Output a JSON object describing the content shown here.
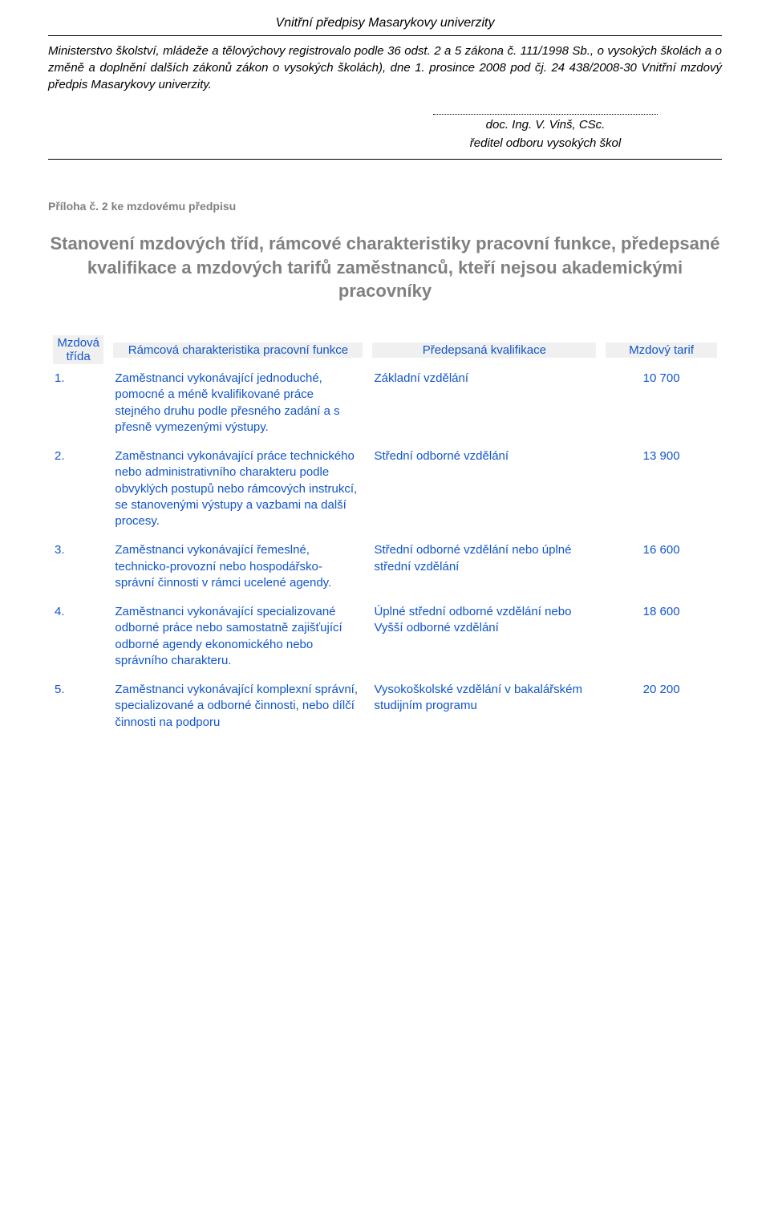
{
  "header": {
    "title": "Vnitřní předpisy Masarykovy univerzity",
    "intro": "Ministerstvo školství, mládeže a tělovýchovy registrovalo podle 36 odst. 2 a 5 zákona č. 111/1998 Sb., o vysokých školách a o změně a doplnění dalších zákonů zákon o vysokých školách), dne 1. prosince 2008 pod čj. 24 438/2008-30 Vnitřní mzdový předpis Masarykovy univerzity."
  },
  "signature": {
    "name": "doc. Ing. V. Vinš, CSc.",
    "role": "ředitel odboru vysokých škol"
  },
  "attachment": {
    "label": "Příloha č. 2 ke mzdovému předpisu",
    "title": "Stanovení mzdových tříd, rámcové charakteristiky pracovní funkce, předepsané kvalifikace a mzdových tarifů zaměstnanců, kteří nejsou akademickými pracovníky"
  },
  "table": {
    "headers": {
      "class": "Mzdová třída",
      "desc": "Rámcová charakteristika pracovní funkce",
      "qual": "Předepsaná kvalifikace",
      "tarif": "Mzdový tarif"
    },
    "rows": [
      {
        "index": "1.",
        "desc": "Zaměstnanci vykonávající jednoduché, pomocné a méně kvalifikované práce stejného druhu podle přesného zadání a s přesně vymezenými výstupy.",
        "qual": "Základní vzdělání",
        "tarif": "10 700"
      },
      {
        "index": "2.",
        "desc": "Zaměstnanci vykonávající práce technického nebo administrativního charakteru podle obvyklých postupů nebo rámcových instrukcí, se stanovenými výstupy a vazbami na další procesy.",
        "qual": "Střední odborné vzdělání",
        "tarif": "13 900"
      },
      {
        "index": "3.",
        "desc": "Zaměstnanci vykonávající řemeslné, technicko-provozní nebo hospodářsko-správní činnosti v rámci ucelené agendy.",
        "qual": "Střední odborné vzdělání nebo úplné střední vzdělání",
        "tarif": "16 600"
      },
      {
        "index": "4.",
        "desc": "Zaměstnanci vykonávající specializované odborné práce nebo samostatně zajišťující odborné agendy ekonomického nebo správního charakteru.",
        "qual": "Úplné střední odborné vzdělání nebo Vyšší odborné vzdělání",
        "tarif": "18 600"
      },
      {
        "index": "5.",
        "desc": "Zaměstnanci vykonávající komplexní správní, specializované a odborné činnosti, nebo dílčí činnosti na podporu",
        "qual": "Vysokoškolské vzdělání v bakalářském studijním programu",
        "tarif": "20 200"
      }
    ]
  },
  "colors": {
    "link_blue": "#1155cc",
    "gray": "#808080",
    "header_bg": "#f0f0f0"
  }
}
